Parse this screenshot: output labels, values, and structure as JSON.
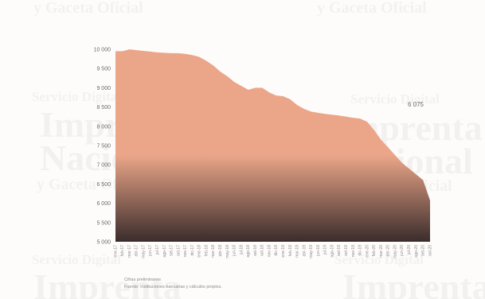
{
  "chart_data": {
    "type": "area",
    "title": "",
    "xlabel": "",
    "ylabel": "",
    "ylim": [
      5000,
      10000
    ],
    "yticks": [
      5000,
      5500,
      6000,
      6500,
      7000,
      7500,
      8000,
      8500,
      9000,
      9500,
      10000
    ],
    "ytick_labels": [
      "5 000",
      "5 500",
      "6 000",
      "6 500",
      "7 000",
      "7 500",
      "8 000",
      "8 500",
      "9 000",
      "9 500",
      "10 000"
    ],
    "x": [
      "ene-17",
      "feb-17",
      "mar-17",
      "abr-17",
      "may-17",
      "jun-17",
      "jul-17",
      "ago-17",
      "set-17",
      "oct-17",
      "nov-17",
      "dic-17",
      "ene-18",
      "feb-18",
      "mar-18",
      "abr-18",
      "may-18",
      "jun-18",
      "jul-18",
      "ago-18",
      "set-18",
      "oct-18",
      "nov-18",
      "dic-18",
      "ene-19",
      "feb-19",
      "mar-19",
      "abr-19",
      "may-19",
      "jun-19",
      "jul-19",
      "ago-19",
      "set-19",
      "oct-19",
      "nov-19",
      "dic-19",
      "ene-20",
      "feb-20",
      "mar-20",
      "abr-20",
      "may-20",
      "jun-20",
      "jul-20",
      "ago-20",
      "set-20",
      "oct-20"
    ],
    "values": [
      9950,
      9950,
      10000,
      9980,
      9960,
      9940,
      9920,
      9910,
      9900,
      9900,
      9880,
      9850,
      9800,
      9700,
      9580,
      9420,
      9300,
      9150,
      9050,
      8950,
      9000,
      9000,
      8880,
      8800,
      8780,
      8700,
      8550,
      8450,
      8380,
      8350,
      8320,
      8300,
      8280,
      8250,
      8220,
      8200,
      8120,
      7900,
      7650,
      7450,
      7250,
      7050,
      6900,
      6750,
      6600,
      6075
    ],
    "annotations": [
      {
        "text": "6 075"
      }
    ],
    "grid": false,
    "legend": "none"
  },
  "notes": {
    "line1": "Cifras preliminares",
    "line2": "Fuente: Instituciones bancarias y cálculos propios."
  },
  "watermark": {
    "service": "Servicio Digital",
    "imprenta": "Imprenta",
    "nacional": "Nacional",
    "gaceta": "y Gaceta Oficial"
  },
  "colors": {
    "area_top": "#eba689",
    "area_bottom": "#3a2c2b",
    "tick_text": "#6d6d6d"
  }
}
